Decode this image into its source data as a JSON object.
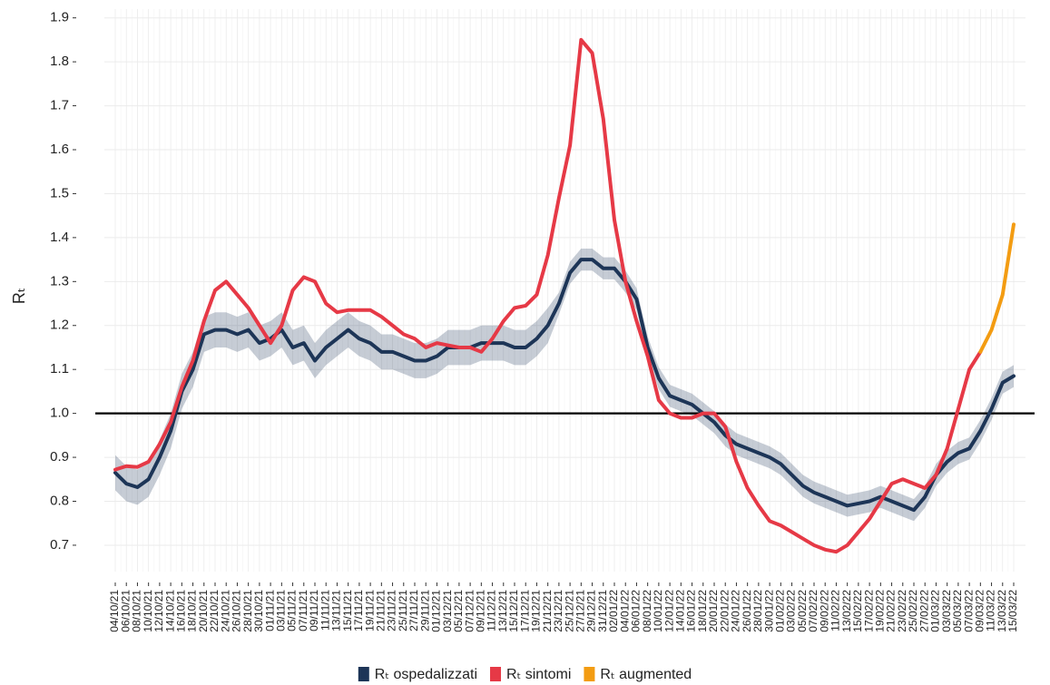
{
  "chart_data": {
    "type": "line",
    "ylabel": "Rₜ",
    "categories": [
      "04/10/21",
      "06/10/21",
      "08/10/21",
      "10/10/21",
      "12/10/21",
      "14/10/21",
      "16/10/21",
      "18/10/21",
      "20/10/21",
      "22/10/21",
      "24/10/21",
      "26/10/21",
      "28/10/21",
      "30/10/21",
      "01/11/21",
      "03/11/21",
      "05/11/21",
      "07/11/21",
      "09/11/21",
      "11/11/21",
      "13/11/21",
      "15/11/21",
      "17/11/21",
      "19/11/21",
      "21/11/21",
      "23/11/21",
      "25/11/21",
      "27/11/21",
      "29/11/21",
      "01/12/21",
      "03/12/21",
      "05/12/21",
      "07/12/21",
      "09/12/21",
      "11/12/21",
      "13/12/21",
      "15/12/21",
      "17/12/21",
      "19/12/21",
      "21/12/21",
      "23/12/21",
      "25/12/21",
      "27/12/21",
      "29/12/21",
      "31/12/21",
      "02/01/22",
      "04/01/22",
      "06/01/22",
      "08/01/22",
      "10/01/22",
      "12/01/22",
      "14/01/22",
      "16/01/22",
      "18/01/22",
      "20/01/22",
      "22/01/22",
      "24/01/22",
      "26/01/22",
      "28/01/22",
      "30/01/22",
      "01/02/22",
      "03/02/22",
      "05/02/22",
      "07/02/22",
      "09/02/22",
      "11/02/22",
      "13/02/22",
      "15/02/22",
      "17/02/22",
      "19/02/22",
      "21/02/22",
      "23/02/22",
      "25/02/22",
      "27/02/22",
      "01/03/22",
      "03/03/22",
      "05/03/22",
      "07/03/22",
      "09/03/22",
      "11/03/22",
      "13/03/22",
      "15/03/22"
    ],
    "series": [
      {
        "name": "Rₜ ospedalizzati",
        "color": "#1d3557",
        "values": [
          0.865,
          0.84,
          0.832,
          0.85,
          0.9,
          0.96,
          1.05,
          1.1,
          1.18,
          1.19,
          1.19,
          1.18,
          1.19,
          1.16,
          1.17,
          1.19,
          1.15,
          1.16,
          1.12,
          1.15,
          1.17,
          1.19,
          1.17,
          1.16,
          1.14,
          1.14,
          1.13,
          1.12,
          1.12,
          1.13,
          1.15,
          1.15,
          1.15,
          1.16,
          1.16,
          1.16,
          1.15,
          1.15,
          1.17,
          1.2,
          1.25,
          1.32,
          1.35,
          1.35,
          1.33,
          1.33,
          1.3,
          1.26,
          1.15,
          1.08,
          1.04,
          1.03,
          1.02,
          1.0,
          0.98,
          0.95,
          0.93,
          0.92,
          0.91,
          0.9,
          0.885,
          0.86,
          0.835,
          0.82,
          0.81,
          0.8,
          0.79,
          0.795,
          0.8,
          0.81,
          0.8,
          0.79,
          0.78,
          0.81,
          0.86,
          0.89,
          0.91,
          0.92,
          0.96,
          1.01,
          1.07,
          1.085
        ],
        "lower": [
          0.825,
          0.8,
          0.792,
          0.81,
          0.86,
          0.92,
          1.01,
          1.06,
          1.14,
          1.15,
          1.15,
          1.14,
          1.15,
          1.12,
          1.13,
          1.15,
          1.11,
          1.12,
          1.08,
          1.11,
          1.13,
          1.15,
          1.13,
          1.12,
          1.1,
          1.1,
          1.09,
          1.08,
          1.08,
          1.09,
          1.11,
          1.11,
          1.11,
          1.12,
          1.12,
          1.12,
          1.11,
          1.11,
          1.13,
          1.16,
          1.225,
          1.295,
          1.325,
          1.325,
          1.305,
          1.305,
          1.275,
          1.235,
          1.125,
          1.055,
          1.015,
          1.005,
          0.995,
          0.975,
          0.955,
          0.925,
          0.905,
          0.895,
          0.885,
          0.875,
          0.86,
          0.835,
          0.81,
          0.795,
          0.785,
          0.775,
          0.765,
          0.77,
          0.775,
          0.785,
          0.775,
          0.765,
          0.755,
          0.785,
          0.835,
          0.865,
          0.885,
          0.895,
          0.935,
          0.985,
          1.045,
          1.06
        ],
        "upper": [
          0.905,
          0.88,
          0.872,
          0.89,
          0.94,
          1.0,
          1.09,
          1.14,
          1.22,
          1.23,
          1.23,
          1.22,
          1.23,
          1.2,
          1.21,
          1.23,
          1.19,
          1.2,
          1.16,
          1.19,
          1.21,
          1.23,
          1.21,
          1.2,
          1.18,
          1.18,
          1.17,
          1.16,
          1.16,
          1.17,
          1.19,
          1.19,
          1.19,
          1.2,
          1.2,
          1.2,
          1.19,
          1.19,
          1.21,
          1.24,
          1.275,
          1.345,
          1.375,
          1.375,
          1.355,
          1.355,
          1.325,
          1.285,
          1.175,
          1.105,
          1.065,
          1.055,
          1.045,
          1.025,
          1.005,
          0.975,
          0.955,
          0.945,
          0.935,
          0.925,
          0.91,
          0.885,
          0.86,
          0.845,
          0.835,
          0.825,
          0.815,
          0.82,
          0.825,
          0.835,
          0.825,
          0.815,
          0.805,
          0.835,
          0.885,
          0.915,
          0.935,
          0.945,
          0.985,
          1.035,
          1.095,
          1.11
        ]
      },
      {
        "name": "Rₜ sintomi",
        "color": "#e63946",
        "values": [
          0.872,
          0.88,
          0.878,
          0.89,
          0.93,
          0.98,
          1.06,
          1.12,
          1.21,
          1.28,
          1.3,
          1.27,
          1.24,
          1.2,
          1.16,
          1.2,
          1.28,
          1.31,
          1.3,
          1.25,
          1.23,
          1.235,
          1.235,
          1.235,
          1.22,
          1.2,
          1.18,
          1.17,
          1.15,
          1.16,
          1.155,
          1.15,
          1.15,
          1.14,
          1.17,
          1.21,
          1.24,
          1.245,
          1.27,
          1.36,
          1.49,
          1.61,
          1.85,
          1.82,
          1.67,
          1.44,
          1.3,
          1.21,
          1.13,
          1.03,
          1.0,
          0.99,
          0.99,
          1.0,
          1.0,
          0.97,
          0.89,
          0.83,
          0.79,
          0.755,
          0.745,
          0.73,
          0.715,
          0.7,
          0.69,
          0.685,
          0.7,
          0.73,
          0.76,
          0.8,
          0.84,
          0.85,
          0.84,
          0.83,
          0.86,
          0.92,
          1.01,
          1.1,
          1.14,
          null,
          null,
          null
        ]
      },
      {
        "name": "Rₜ augmented",
        "color": "#f39c12",
        "values": [
          null,
          null,
          null,
          null,
          null,
          null,
          null,
          null,
          null,
          null,
          null,
          null,
          null,
          null,
          null,
          null,
          null,
          null,
          null,
          null,
          null,
          null,
          null,
          null,
          null,
          null,
          null,
          null,
          null,
          null,
          null,
          null,
          null,
          null,
          null,
          null,
          null,
          null,
          null,
          null,
          null,
          null,
          null,
          null,
          null,
          null,
          null,
          null,
          null,
          null,
          null,
          null,
          null,
          null,
          null,
          null,
          null,
          null,
          null,
          null,
          null,
          null,
          null,
          null,
          null,
          null,
          null,
          null,
          null,
          null,
          null,
          null,
          null,
          null,
          null,
          null,
          null,
          null,
          1.14,
          1.19,
          1.27,
          1.43
        ]
      }
    ],
    "hline": 1,
    "ylim": [
      0.64,
      1.92
    ],
    "yticks": [
      0.7,
      0.8,
      0.9,
      {
        "value": 1,
        "label": "1.0"
      },
      1.1,
      1.2,
      1.3,
      1.4,
      1.5,
      1.6,
      1.7,
      1.8,
      1.9
    ],
    "grid": true
  }
}
